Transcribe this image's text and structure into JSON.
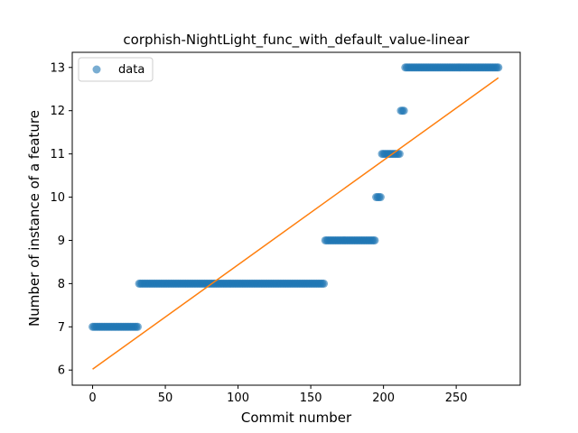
{
  "chart_data": {
    "type": "scatter",
    "title": "corphish-NightLight_func_with_default_value-linear",
    "xlabel": "Commit number",
    "ylabel": "Number of instance of a feature",
    "xlim": [
      -14,
      294
    ],
    "ylim": [
      5.65,
      13.35
    ],
    "x_ticks": [
      0,
      50,
      100,
      150,
      200,
      250
    ],
    "y_ticks": [
      6,
      7,
      8,
      9,
      10,
      11,
      12,
      13
    ],
    "grid": false,
    "legend_position": "top-left",
    "series": [
      {
        "name": "data",
        "kind": "scatter",
        "color": "#1f77b4",
        "segments": [
          {
            "x_start": 0,
            "x_end": 31,
            "y": 7
          },
          {
            "x_start": 32,
            "x_end": 159,
            "y": 8
          },
          {
            "x_start": 160,
            "x_end": 194,
            "y": 9
          },
          {
            "x_start": 195,
            "x_end": 198,
            "y": 10
          },
          {
            "x_start": 199,
            "x_end": 211,
            "y": 11
          },
          {
            "x_start": 212,
            "x_end": 214,
            "y": 12
          },
          {
            "x_start": 215,
            "x_end": 279,
            "y": 13
          }
        ]
      },
      {
        "kind": "line",
        "color": "#ff7f0e",
        "points": [
          [
            0,
            6.02
          ],
          [
            279,
            12.76
          ]
        ]
      }
    ]
  }
}
